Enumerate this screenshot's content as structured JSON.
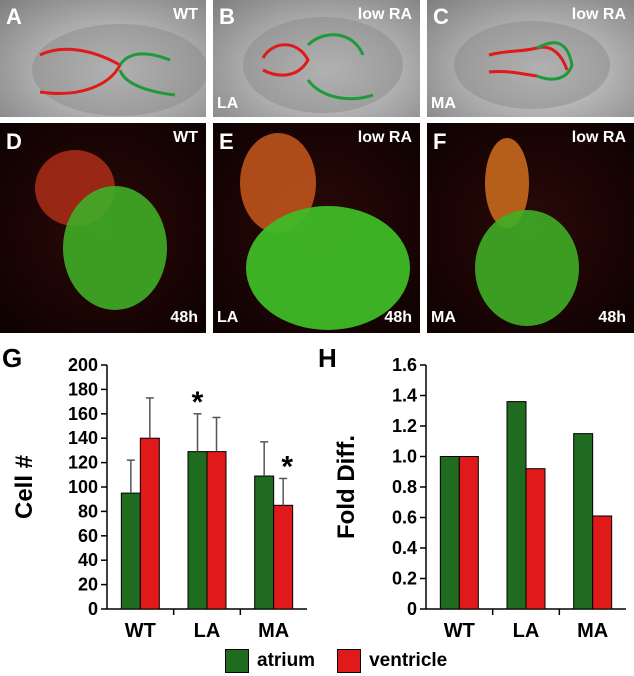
{
  "panels": {
    "A": {
      "letter": "A",
      "tag": "WT"
    },
    "B": {
      "letter": "B",
      "tag": "low RA",
      "corner": "LA"
    },
    "C": {
      "letter": "C",
      "tag": "low RA",
      "corner": "MA"
    },
    "D": {
      "letter": "D",
      "tag": "WT",
      "time": "48h"
    },
    "E": {
      "letter": "E",
      "tag": "low RA",
      "corner": "LA",
      "time": "48h"
    },
    "F": {
      "letter": "F",
      "tag": "low RA",
      "corner": "MA",
      "time": "48h"
    }
  },
  "legend": {
    "atrium": "atrium",
    "ventricle": "ventricle"
  },
  "colors": {
    "atrium": "#1f6b1f",
    "ventricle": "#e01a1a"
  },
  "chart_data": [
    {
      "panel": "G",
      "type": "bar",
      "ylabel": "Cell #",
      "ylim": [
        0,
        200
      ],
      "yticks": [
        0,
        20,
        40,
        60,
        80,
        100,
        120,
        140,
        160,
        180,
        200
      ],
      "categories": [
        "WT",
        "LA",
        "MA"
      ],
      "series": [
        {
          "name": "atrium",
          "values": [
            95,
            129,
            109
          ],
          "errors": [
            27,
            31,
            28
          ]
        },
        {
          "name": "ventricle",
          "values": [
            140,
            129,
            85
          ],
          "errors": [
            33,
            28,
            22
          ]
        }
      ],
      "annotations": [
        {
          "text": "*",
          "category": "LA",
          "series": "atrium"
        },
        {
          "text": "*",
          "category": "MA",
          "series": "ventricle"
        }
      ]
    },
    {
      "panel": "H",
      "type": "bar",
      "ylabel": "Fold Diff.",
      "ylim": [
        0,
        1.6
      ],
      "yticks": [
        "0",
        "0.2",
        "0.4",
        "0.6",
        "0.8",
        "1.0",
        "1.2",
        "1.4",
        "1.6"
      ],
      "categories": [
        "WT",
        "LA",
        "MA"
      ],
      "series": [
        {
          "name": "atrium",
          "values": [
            1.0,
            1.36,
            1.15
          ]
        },
        {
          "name": "ventricle",
          "values": [
            1.0,
            0.92,
            0.61
          ]
        }
      ]
    }
  ]
}
